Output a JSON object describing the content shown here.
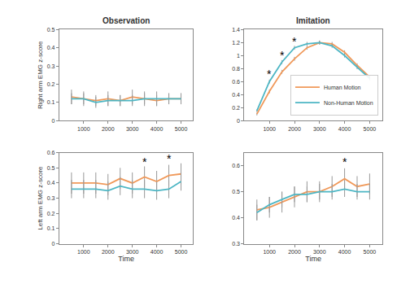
{
  "chart_data": [
    {
      "type": "line",
      "title": "Observation",
      "ylabel": "Right arm EMG z-score",
      "x": [
        500,
        1000,
        1500,
        2000,
        2500,
        3000,
        3500,
        4000,
        4500,
        5000
      ],
      "xlim": [
        0,
        5500
      ],
      "xticks": [
        1000,
        2000,
        3000,
        4000,
        5000
      ],
      "ylim": [
        0,
        0.5
      ],
      "yticks": [
        0,
        0.1,
        0.2,
        0.3,
        0.4,
        0.5
      ],
      "grid": false,
      "series": [
        {
          "name": "Human Motion",
          "color": "#f0995a",
          "line_style": "solid",
          "values": [
            0.13,
            0.12,
            0.11,
            0.12,
            0.11,
            0.13,
            0.12,
            0.11,
            0.12,
            0.12
          ],
          "error": [
            0.04,
            0.04,
            0.03,
            0.04,
            0.03,
            0.04,
            0.04,
            0.03,
            0.03,
            0.03
          ]
        },
        {
          "name": "Non-Human Motion",
          "color": "#4db6c4",
          "line_style": "solid",
          "values": [
            0.12,
            0.12,
            0.1,
            0.11,
            0.11,
            0.11,
            0.12,
            0.12,
            0.12,
            0.12
          ],
          "error": [
            0.03,
            0.03,
            0.03,
            0.03,
            0.03,
            0.03,
            0.03,
            0.04,
            0.03,
            0.03
          ]
        }
      ],
      "annotations": []
    },
    {
      "type": "line",
      "title": "Imitation",
      "legend": "lower right",
      "x": [
        500,
        1000,
        1500,
        2000,
        2500,
        3000,
        3500,
        4000,
        4500,
        5000
      ],
      "xlim": [
        0,
        5500
      ],
      "xticks": [
        1000,
        2000,
        3000,
        4000,
        5000
      ],
      "ylim": [
        0,
        1.4
      ],
      "yticks": [
        0,
        0.2,
        0.4,
        0.6,
        0.8,
        1,
        1.2,
        1.4
      ],
      "grid": false,
      "series": [
        {
          "name": "Human Motion",
          "color": "#f0995a",
          "line_style": "solid",
          "values": [
            0.1,
            0.45,
            0.75,
            0.95,
            1.12,
            1.2,
            1.18,
            1.05,
            0.85,
            0.67
          ],
          "error": [
            0.02,
            0.03,
            0.03,
            0.03,
            0.03,
            0.03,
            0.03,
            0.03,
            0.03,
            0.03
          ]
        },
        {
          "name": "Non-Human Motion",
          "color": "#4db6c4",
          "line_style": "solid",
          "values": [
            0.15,
            0.6,
            0.9,
            1.12,
            1.18,
            1.2,
            1.15,
            1.0,
            0.82,
            0.65
          ],
          "error": [
            0.02,
            0.03,
            0.03,
            0.03,
            0.03,
            0.03,
            0.03,
            0.03,
            0.03,
            0.03
          ]
        }
      ],
      "annotations": [
        {
          "x": 1000,
          "y": 0.72,
          "text": "*"
        },
        {
          "x": 1500,
          "y": 1.0,
          "text": "*"
        },
        {
          "x": 2000,
          "y": 1.22,
          "text": "*"
        }
      ]
    },
    {
      "type": "line",
      "ylabel": "Left arm EMG z-score",
      "xlabel": "Time",
      "x": [
        500,
        1000,
        1500,
        2000,
        2500,
        3000,
        3500,
        4000,
        4500,
        5000
      ],
      "xlim": [
        0,
        5500
      ],
      "xticks": [
        1000,
        2000,
        3000,
        4000,
        5000
      ],
      "ylim": [
        0,
        0.6
      ],
      "yticks": [
        0,
        0.1,
        0.2,
        0.3,
        0.4,
        0.5,
        0.6
      ],
      "grid": false,
      "series": [
        {
          "name": "Human Motion",
          "color": "#f0995a",
          "line_style": "solid",
          "values": [
            0.4,
            0.4,
            0.4,
            0.39,
            0.43,
            0.4,
            0.44,
            0.41,
            0.45,
            0.46
          ],
          "error": [
            0.07,
            0.07,
            0.07,
            0.07,
            0.07,
            0.07,
            0.07,
            0.07,
            0.07,
            0.07
          ]
        },
        {
          "name": "Non-Human Motion",
          "color": "#4db6c4",
          "line_style": "solid",
          "values": [
            0.36,
            0.36,
            0.36,
            0.35,
            0.38,
            0.36,
            0.36,
            0.35,
            0.36,
            0.41
          ],
          "error": [
            0.06,
            0.06,
            0.06,
            0.06,
            0.06,
            0.06,
            0.06,
            0.06,
            0.06,
            0.06
          ]
        }
      ],
      "annotations": [
        {
          "x": 3500,
          "y": 0.54,
          "text": "*"
        },
        {
          "x": 4500,
          "y": 0.56,
          "text": "*"
        }
      ]
    },
    {
      "type": "line",
      "xlabel": "Time",
      "x": [
        500,
        1000,
        1500,
        2000,
        2500,
        3000,
        3500,
        4000,
        4500,
        5000
      ],
      "xlim": [
        0,
        5500
      ],
      "xticks": [
        1000,
        2000,
        3000,
        4000,
        5000
      ],
      "ylim": [
        0.3,
        0.65
      ],
      "yticks": [
        0.3,
        0.4,
        0.5,
        0.6
      ],
      "grid": false,
      "series": [
        {
          "name": "Human Motion",
          "color": "#f0995a",
          "line_style": "solid",
          "values": [
            0.43,
            0.44,
            0.46,
            0.48,
            0.5,
            0.5,
            0.52,
            0.55,
            0.52,
            0.53
          ],
          "error": [
            0.04,
            0.04,
            0.04,
            0.04,
            0.04,
            0.04,
            0.04,
            0.04,
            0.04,
            0.04
          ]
        },
        {
          "name": "Non-Human Motion",
          "color": "#4db6c4",
          "line_style": "solid",
          "values": [
            0.42,
            0.45,
            0.47,
            0.49,
            0.49,
            0.5,
            0.5,
            0.51,
            0.5,
            0.5
          ],
          "error": [
            0.03,
            0.03,
            0.03,
            0.03,
            0.03,
            0.03,
            0.03,
            0.03,
            0.03,
            0.03
          ]
        }
      ],
      "annotations": [
        {
          "x": 4000,
          "y": 0.615,
          "text": "*"
        }
      ]
    }
  ]
}
